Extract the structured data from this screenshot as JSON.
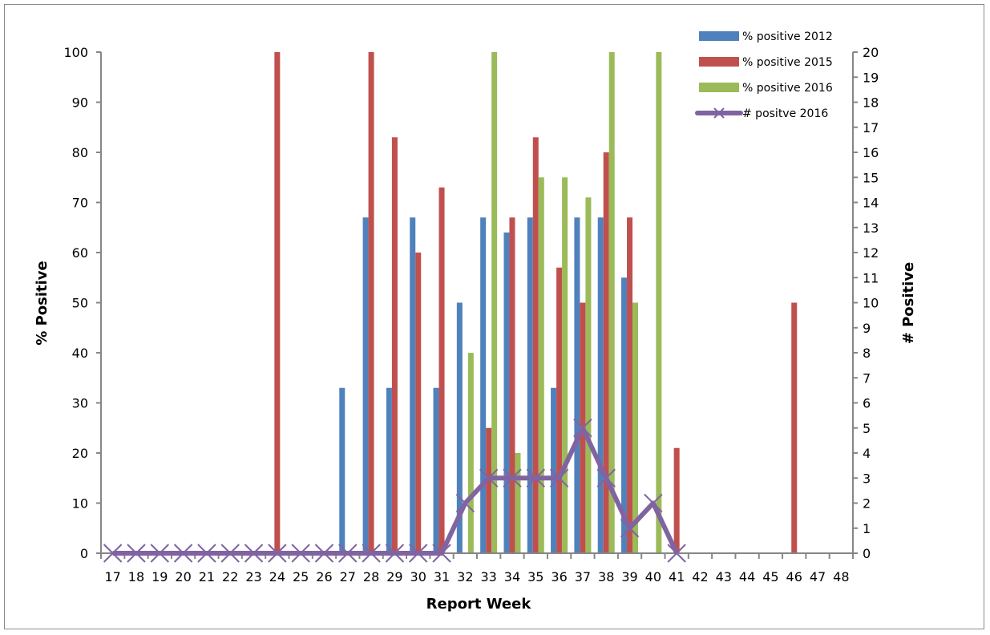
{
  "chart_data": {
    "type": "bar",
    "title": "",
    "xlabel": "Report Week",
    "ylabel": "% Positive",
    "y2label": "# Positive",
    "ylim": [
      0,
      100
    ],
    "y2lim": [
      0,
      20
    ],
    "yticks": [
      0,
      10,
      20,
      30,
      40,
      50,
      60,
      70,
      80,
      90,
      100
    ],
    "y2ticks": [
      0,
      1,
      2,
      3,
      4,
      5,
      6,
      7,
      8,
      9,
      10,
      11,
      12,
      13,
      14,
      15,
      16,
      17,
      18,
      19,
      20
    ],
    "grid": false,
    "legend_position": "top-right",
    "categories": [
      "17",
      "18",
      "19",
      "20",
      "21",
      "22",
      "23",
      "24",
      "25",
      "26",
      "27",
      "28",
      "29",
      "30",
      "31",
      "32",
      "33",
      "34",
      "35",
      "36",
      "37",
      "38",
      "39",
      "40",
      "41",
      "42",
      "43",
      "44",
      "45",
      "46",
      "47",
      "48"
    ],
    "series": [
      {
        "name": "% positive 2012",
        "type": "bar",
        "axis": "left",
        "color": "#4f81bd",
        "values": [
          0,
          0,
          0,
          0,
          0,
          0,
          0,
          0,
          0,
          0,
          33,
          67,
          33,
          67,
          33,
          50,
          67,
          64,
          67,
          33,
          67,
          67,
          55,
          0,
          0,
          0,
          0,
          0,
          0,
          0,
          0,
          0
        ]
      },
      {
        "name": "% positive 2015",
        "type": "bar",
        "axis": "left",
        "color": "#c0504d",
        "values": [
          0,
          0,
          0,
          0,
          0,
          0,
          0,
          100,
          0,
          0,
          0,
          100,
          83,
          60,
          73,
          0,
          25,
          67,
          83,
          57,
          50,
          80,
          67,
          0,
          21,
          0,
          0,
          0,
          0,
          50,
          0,
          0
        ]
      },
      {
        "name": "% positive  2016",
        "type": "bar",
        "axis": "left",
        "color": "#9bbb59",
        "values": [
          0,
          0,
          0,
          0,
          0,
          0,
          0,
          0,
          0,
          0,
          0,
          0,
          0,
          0,
          0,
          40,
          100,
          20,
          75,
          75,
          71,
          100,
          50,
          100,
          0,
          0,
          0,
          0,
          0,
          0,
          0,
          0
        ]
      },
      {
        "name": "# positve 2016",
        "type": "line",
        "axis": "right",
        "color": "#8064a2",
        "marker": "x",
        "values": [
          0,
          0,
          0,
          0,
          0,
          0,
          0,
          0,
          0,
          0,
          0,
          0,
          0,
          0,
          0,
          2,
          3,
          3,
          3,
          3,
          5,
          3,
          1,
          2,
          0,
          null,
          null,
          null,
          null,
          null,
          null,
          null
        ]
      }
    ]
  },
  "legend": {
    "items": [
      {
        "label": "% positive 2012",
        "color": "#4f81bd",
        "kind": "bar"
      },
      {
        "label": "% positive 2015",
        "color": "#c0504d",
        "kind": "bar"
      },
      {
        "label": "% positive  2016",
        "color": "#9bbb59",
        "kind": "bar"
      },
      {
        "label": "# positve 2016",
        "color": "#8064a2",
        "kind": "line"
      }
    ]
  }
}
